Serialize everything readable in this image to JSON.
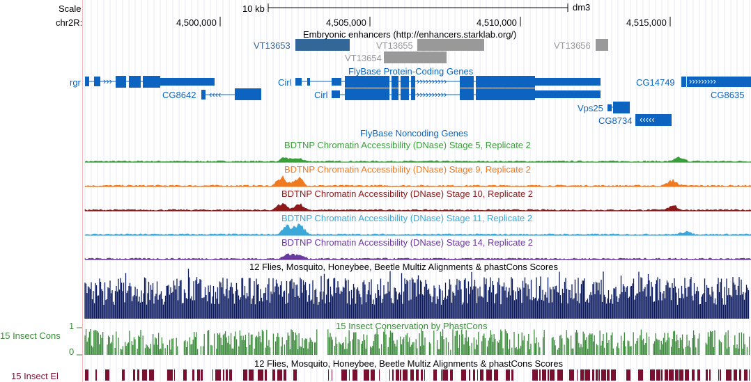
{
  "header": {
    "scale_label": "Scale",
    "scale_value": "10 kb",
    "assembly": "dm3",
    "chrom_label": "chr2R:",
    "ticks": [
      "4,500,000",
      "4,505,000",
      "4,510,000",
      "4,515,000"
    ]
  },
  "tracks": {
    "enhancers": {
      "title": "Embryonic enhancers (http://enhancers.starklab.org/)",
      "items": [
        "VT13653",
        "VT13655",
        "VT13654",
        "VT13656"
      ],
      "colors": {
        "strong": "#336699",
        "weak": "#999999"
      }
    },
    "genes": {
      "title": "FlyBase Protein-Coding Genes",
      "labels": [
        "rgr",
        "CG8642",
        "Cirl",
        "Cirl",
        "CG14749",
        "CG8635",
        "Vps25",
        "CG8734"
      ],
      "color": "#0c64c0"
    },
    "noncoding": {
      "title": "FlyBase Noncoding Genes"
    },
    "dnase": [
      {
        "title": "BDTNP Chromatin Accessibility (DNase) Stage 5, Replicate 2",
        "color": "#3a9e3a"
      },
      {
        "title": "BDTNP Chromatin Accessibility (DNase) Stage 9, Replicate 2",
        "color": "#f07a20"
      },
      {
        "title": "BDTNP Chromatin Accessibility (DNase) Stage 10, Replicate 2",
        "color": "#8c1a1a"
      },
      {
        "title": "BDTNP Chromatin Accessibility (DNase) Stage 11, Replicate 2",
        "color": "#3aa8d8"
      },
      {
        "title": "BDTNP Chromatin Accessibility (DNase) Stage 14, Replicate 2",
        "color": "#6a3a9e"
      }
    ],
    "multiz": {
      "title": "12 Flies, Mosquito, Honeybee, Beetle Multiz Alignments & phastCons Scores",
      "color": "#0b1a5e"
    },
    "phastcons": {
      "title": "15 Insect Conservation by PhastCons",
      "side_label": "15 Insect Cons",
      "y_max": "1",
      "y_min": "0",
      "color": "#3a8a3a"
    },
    "elements": {
      "title": "12 Flies, Mosquito, Honeybee, Beetle Multiz Alignments & phastCons Scores",
      "side_label": "15 Insect El",
      "color": "#7a1030"
    }
  }
}
